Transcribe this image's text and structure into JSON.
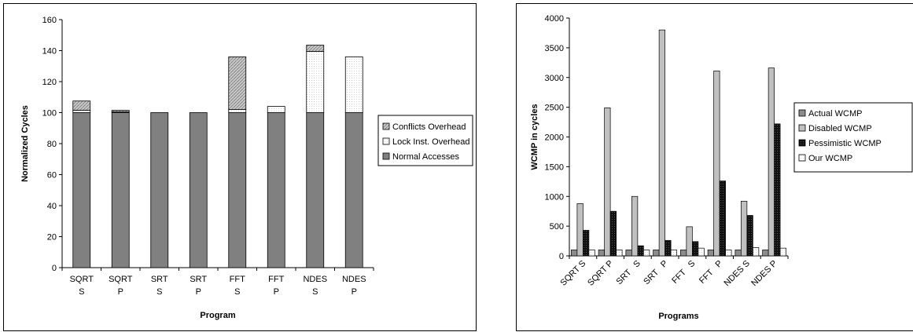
{
  "chart_data": [
    {
      "type": "bar",
      "stacked": true,
      "title": "",
      "xlabel": "Program",
      "ylabel": "Normalized Cycles",
      "ylim": [
        0,
        160
      ],
      "yticks": [
        0,
        20,
        40,
        60,
        80,
        100,
        120,
        140,
        160
      ],
      "grid": false,
      "legend_position": "right",
      "categories": [
        "SQRT S",
        "SQRT P",
        "SRT S",
        "SRT P",
        "FFT S",
        "FFT P",
        "NDES S",
        "NDES P"
      ],
      "category_lines": [
        [
          "SQRT",
          "S"
        ],
        [
          "SQRT",
          "P"
        ],
        [
          "SRT",
          "S"
        ],
        [
          "SRT",
          "P"
        ],
        [
          "FFT",
          "S"
        ],
        [
          "FFT",
          "P"
        ],
        [
          "NDES",
          "S"
        ],
        [
          "NDES",
          "P"
        ]
      ],
      "series": [
        {
          "name": "Normal Accesses",
          "values": [
            100,
            100,
            100,
            100,
            100,
            100,
            100,
            100
          ],
          "color": "#808080"
        },
        {
          "name": "Lock Inst. Overhead",
          "values": [
            1.5,
            0.5,
            0,
            0,
            2,
            4,
            39.5,
            36
          ],
          "color": "#ffffff"
        },
        {
          "name": "Conflicts Overhead",
          "values": [
            6,
            1,
            0,
            0,
            34,
            0,
            4,
            0
          ],
          "color": "#c0c0c0"
        }
      ],
      "legend_order": [
        "Conflicts Overhead",
        "Lock Inst. Overhead",
        "Normal Accesses"
      ]
    },
    {
      "type": "bar",
      "stacked": false,
      "title": "",
      "xlabel": "Programs",
      "ylabel": "WCMP in cycles",
      "ylim": [
        0,
        4000
      ],
      "yticks": [
        0,
        500,
        1000,
        1500,
        2000,
        2500,
        3000,
        3500,
        4000
      ],
      "grid": false,
      "legend_position": "right",
      "categories": [
        "SQRT S",
        "SQRT P",
        "SRT   S",
        "SRT   P",
        "FFT   S",
        "FFT   P",
        "NDES S",
        "NDES P"
      ],
      "series": [
        {
          "name": "Actual WCMP",
          "values": [
            100,
            100,
            100,
            100,
            100,
            100,
            100,
            100
          ],
          "color": "#808080"
        },
        {
          "name": "Disabled WCMP",
          "values": [
            880,
            2490,
            1000,
            3800,
            490,
            3110,
            920,
            3160
          ],
          "color": "#c0c0c0"
        },
        {
          "name": "Pessimistic WCMP",
          "values": [
            430,
            750,
            170,
            260,
            240,
            1260,
            680,
            2220
          ],
          "color": "#111111"
        },
        {
          "name": "Our WCMP",
          "values": [
            100,
            100,
            100,
            100,
            130,
            100,
            140,
            130
          ],
          "color": "#e8e8e8"
        }
      ]
    }
  ]
}
